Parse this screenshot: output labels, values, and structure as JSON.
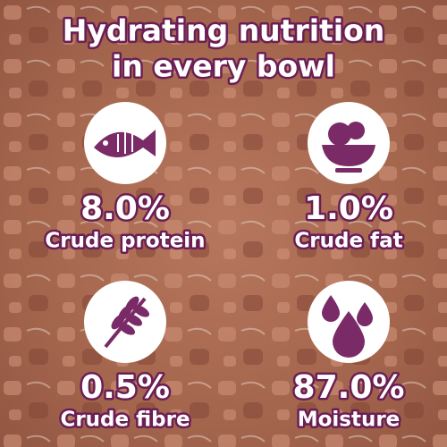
{
  "title": {
    "lines": [
      "Hydrating nutrition",
      "in every bowl"
    ]
  },
  "nutrients": [
    {
      "value": "8.0%",
      "label": "Crude protein"
    },
    {
      "value": "1.0%",
      "label": "Crude fat"
    },
    {
      "value": "0.5%",
      "label": "Crude fibre"
    },
    {
      "value": "87.0%",
      "label": "Moisture"
    }
  ]
}
